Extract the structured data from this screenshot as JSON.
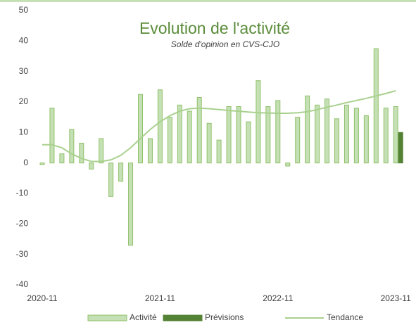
{
  "chart_data": {
    "type": "bar",
    "title": "Evolution de l'activité",
    "subtitle": "Solde d'opinion en CVS-CJO",
    "categories": [
      "2020-11",
      null,
      null,
      null,
      null,
      null,
      null,
      null,
      null,
      null,
      null,
      null,
      "2021-11",
      null,
      null,
      null,
      null,
      null,
      null,
      null,
      null,
      null,
      null,
      null,
      "2022-11",
      null,
      null,
      null,
      null,
      null,
      null,
      null,
      null,
      null,
      null,
      null,
      "2023-11"
    ],
    "series": [
      {
        "name": "Activité",
        "color": "#c5e0b4",
        "values": [
          -0.5,
          18,
          3,
          11,
          6.5,
          -2,
          8,
          -11,
          -6,
          -27,
          22.5,
          8,
          24,
          15,
          19,
          17,
          21.5,
          13,
          7.5,
          18.5,
          18.5,
          13.5,
          27,
          18.5,
          20.5,
          -1,
          15,
          22,
          19,
          21,
          14.5,
          19,
          18,
          15.5,
          37.5,
          18,
          18.5
        ]
      },
      {
        "name": "Prévisions",
        "color": "#548235",
        "values": [
          null,
          null,
          null,
          null,
          null,
          null,
          null,
          null,
          null,
          null,
          null,
          null,
          null,
          null,
          null,
          null,
          null,
          null,
          null,
          null,
          null,
          null,
          null,
          null,
          null,
          null,
          null,
          null,
          null,
          null,
          null,
          null,
          null,
          null,
          null,
          null,
          10
        ]
      },
      {
        "name": "Tendance",
        "type": "line",
        "color": "#a9d18e",
        "values": [
          6,
          6,
          5,
          3,
          1.5,
          0.5,
          0.5,
          1,
          2.5,
          5,
          8,
          11,
          13.5,
          15.5,
          17,
          17.8,
          18,
          17.8,
          17.5,
          17.2,
          17,
          16.7,
          16.5,
          16.4,
          16.3,
          16.3,
          16.5,
          16.8,
          17.5,
          18.3,
          19,
          19.8,
          20.5,
          21.2,
          22,
          22.8,
          23.7
        ]
      }
    ],
    "ylim": [
      -40,
      50
    ],
    "yticks": [
      -40,
      -30,
      -20,
      -10,
      0,
      10,
      20,
      30,
      40,
      50
    ],
    "grid": false
  }
}
